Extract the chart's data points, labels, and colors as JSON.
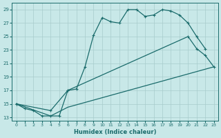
{
  "xlabel": "Humidex (Indice chaleur)",
  "xlim": [
    -0.5,
    23.5
  ],
  "ylim": [
    12.5,
    30.0
  ],
  "yticks": [
    13,
    15,
    17,
    19,
    21,
    23,
    25,
    27,
    29
  ],
  "xticks": [
    0,
    1,
    2,
    3,
    4,
    5,
    6,
    7,
    8,
    9,
    10,
    11,
    12,
    13,
    14,
    15,
    16,
    17,
    18,
    19,
    20,
    21,
    22,
    23
  ],
  "bg_color": "#c8e8e8",
  "grid_color": "#a8cccc",
  "line_color": "#1a6b6b",
  "curve1_x": [
    0,
    1,
    2,
    3,
    4,
    5,
    6,
    7,
    8,
    9,
    10,
    11,
    12,
    13,
    14,
    15,
    16,
    17,
    18,
    19,
    20,
    21,
    22
  ],
  "curve1_y": [
    15.0,
    14.3,
    14.0,
    13.2,
    13.2,
    13.2,
    17.0,
    17.2,
    20.5,
    25.2,
    27.8,
    27.2,
    27.0,
    29.0,
    29.0,
    28.0,
    28.2,
    29.0,
    28.8,
    28.2,
    27.0,
    25.0,
    23.2
  ],
  "curve2_x": [
    0,
    4,
    6,
    20,
    21,
    22,
    23
  ],
  "curve2_y": [
    15.0,
    14.0,
    17.0,
    25.0,
    23.2,
    22.2,
    20.5
  ],
  "curve2_has_markers": true,
  "curve3_x": [
    0,
    4,
    6,
    23
  ],
  "curve3_y": [
    15.0,
    13.2,
    14.5,
    20.5
  ],
  "curve3_has_markers": false
}
